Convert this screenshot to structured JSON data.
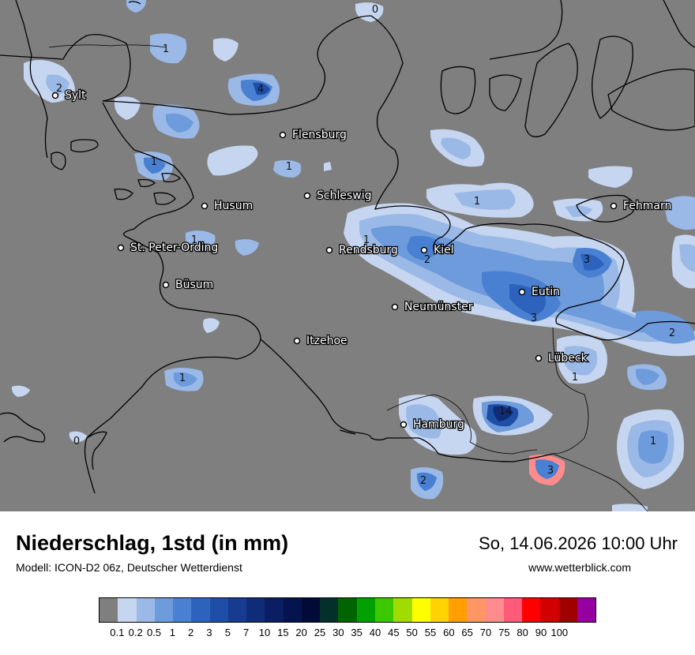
{
  "header": {
    "title": "Niederschlag, 1std (in mm)",
    "subtitle": "Modell: ICON-D2 06z, Deutscher Wetterdienst",
    "datetime": "So, 14.06.2026 10:00 Uhr",
    "website": "www.wetterblick.com"
  },
  "cities": [
    {
      "name": "Sylt"
    },
    {
      "name": "Flensburg"
    },
    {
      "name": "Schleswig"
    },
    {
      "name": "Husum"
    },
    {
      "name": "St. Peter-Ording"
    },
    {
      "name": "Rendsburg"
    },
    {
      "name": "Kiel"
    },
    {
      "name": "Fehmarn"
    },
    {
      "name": "Büsum"
    },
    {
      "name": "Neumünster"
    },
    {
      "name": "Eutin"
    },
    {
      "name": "Itzehoe"
    },
    {
      "name": "Lübeck"
    },
    {
      "name": "Hamburg"
    }
  ],
  "precip_values": [
    "1",
    "2",
    "4",
    "1",
    "1",
    "1",
    "1",
    "2",
    "1",
    "3",
    "3",
    "2",
    "1",
    "1",
    "14",
    "1",
    "2",
    "3",
    "0",
    "0"
  ],
  "legend": {
    "colors": [
      "#7f7f7f",
      "#c6d6f0",
      "#9bb9e6",
      "#6e9bdc",
      "#4a80d2",
      "#2d63bc",
      "#1f4ea6",
      "#163b8f",
      "#0f2c78",
      "#0a1f63",
      "#05134e",
      "#020b38",
      "#03302a",
      "#006400",
      "#00a000",
      "#3cc800",
      "#a0dc00",
      "#ffff00",
      "#ffd200",
      "#ffa000",
      "#ff9664",
      "#ff8c8c",
      "#ff5a78",
      "#ff0000",
      "#d20000",
      "#a00000",
      "#9600a0"
    ],
    "labels": [
      "0.1",
      "0.2",
      "0.5",
      "1",
      "2",
      "3",
      "5",
      "7",
      "10",
      "15",
      "20",
      "25",
      "30",
      "35",
      "40",
      "45",
      "50",
      "55",
      "60",
      "65",
      "70",
      "75",
      "80",
      "90",
      "100"
    ]
  }
}
